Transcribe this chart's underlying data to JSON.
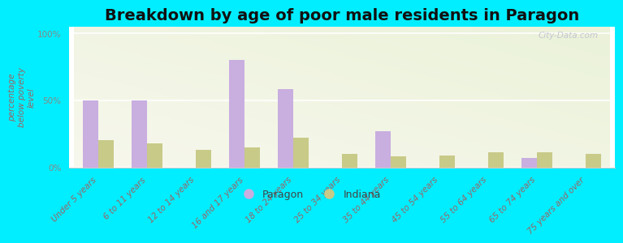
{
  "title": "Breakdown by age of poor male residents in Paragon",
  "categories": [
    "Under 5 years",
    "6 to 11 years",
    "12 to 14 years",
    "16 and 17 years",
    "18 to 24 years",
    "25 to 34 years",
    "35 to 44 years",
    "45 to 54 years",
    "55 to 64 years",
    "65 to 74 years",
    "75 years and over"
  ],
  "paragon_values": [
    50,
    50,
    0,
    80,
    58,
    0,
    27,
    0,
    0,
    7,
    0
  ],
  "indiana_values": [
    20,
    18,
    13,
    15,
    22,
    10,
    8,
    9,
    11,
    11,
    10
  ],
  "paragon_color": "#c9aee0",
  "indiana_color": "#c8ca88",
  "background_color": "#00eeff",
  "ylabel": "percentage\nbelow poverty\nlevel",
  "yticks": [
    0,
    50,
    100
  ],
  "ytick_labels": [
    "0%",
    "50%",
    "100%"
  ],
  "title_fontsize": 14,
  "axis_label_fontsize": 7.5,
  "tick_fontsize": 7.5,
  "legend_labels": [
    "Paragon",
    "Indiana"
  ],
  "watermark": "City-Data.com",
  "bar_width": 0.32,
  "plot_bg_colors": [
    "#e8f0d0",
    "#f8faf0"
  ],
  "grid_color": "#ffffff",
  "spine_color": "#cccccc",
  "text_color": "#996666",
  "ytick_color": "#888888"
}
